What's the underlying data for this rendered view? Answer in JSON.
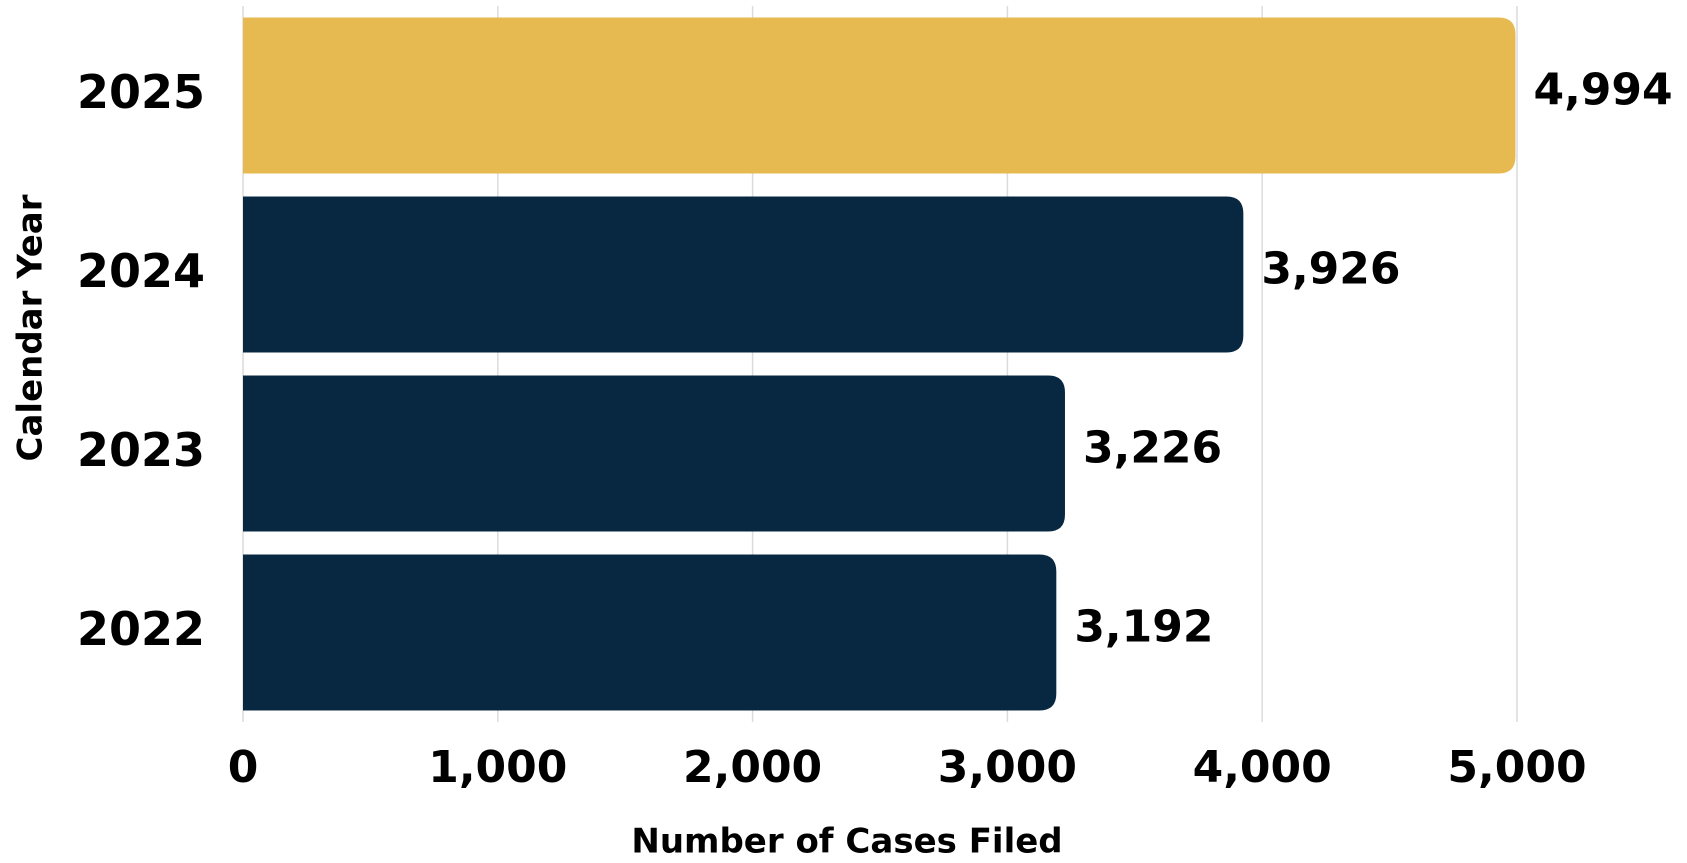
{
  "chart_data": {
    "type": "bar",
    "orientation": "horizontal",
    "x_label": "Number of Cases Filed",
    "y_label": "Calendar Year",
    "categories": [
      "2025",
      "2024",
      "2023",
      "2022"
    ],
    "values": [
      4994,
      3926,
      3226,
      3192
    ],
    "value_labels": [
      "4,994",
      "3,926",
      "3,226",
      "3,192"
    ],
    "colors": [
      "#e6b951",
      "#082841",
      "#082841",
      "#082841"
    ],
    "xlim": [
      0,
      5000
    ],
    "xticks": [
      0,
      {
        "value": 1000,
        "label": "1,000"
      },
      {
        "value": 2000,
        "label": "2,000"
      },
      {
        "value": 3000,
        "label": "3,000"
      },
      {
        "value": 4000,
        "label": "4,000"
      },
      {
        "value": 5000,
        "label": "5,000"
      }
    ],
    "grid": true
  }
}
